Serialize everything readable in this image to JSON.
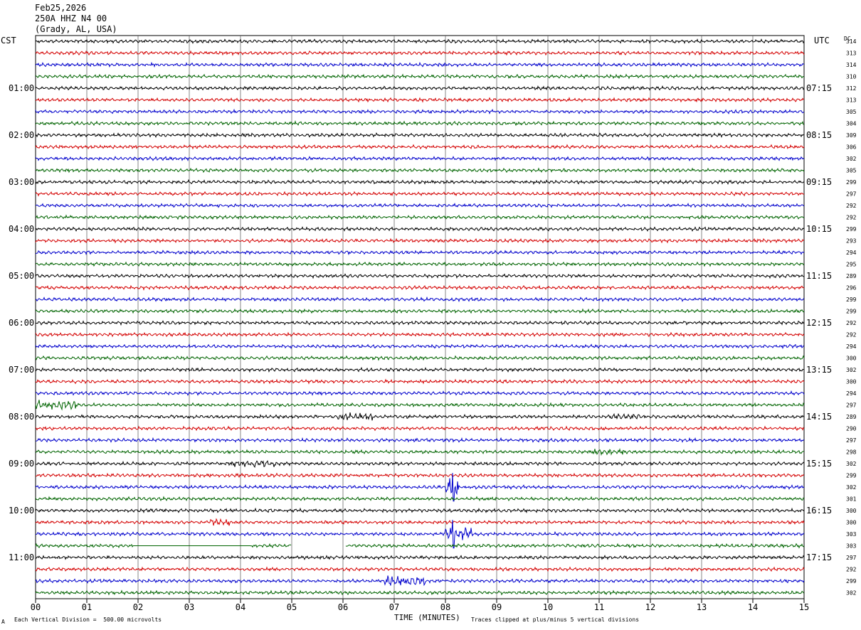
{
  "header": {
    "date": "Feb25,2026",
    "station": "250A HHZ N4 00",
    "location": "(Grady, AL, USA)"
  },
  "left_tz": "CST",
  "right_tz": "UTC",
  "dc_header": "DC",
  "footer": {
    "division": "Each Vertical Division =  500.00 microvolts",
    "xlabel": "TIME (MINUTES)",
    "clip_note": "Traces clipped at plus/minus 5 vertical divisions",
    "corner_mark": "A"
  },
  "colors": {
    "trace_cycle": [
      "#000000",
      "#d40000",
      "#0000cc",
      "#006400"
    ],
    "grid": "#000000"
  },
  "chart_data": {
    "type": "line",
    "title": "",
    "xlabel": "TIME (MINUTES)",
    "ylabel": "",
    "xlim": [
      0,
      15
    ],
    "x_ticks": [
      "00",
      "01",
      "02",
      "03",
      "04",
      "05",
      "06",
      "07",
      "08",
      "09",
      "10",
      "11",
      "12",
      "13",
      "14",
      "15"
    ],
    "grid": true,
    "left_time_labels": [
      {
        "row": 4,
        "label": "01:00"
      },
      {
        "row": 8,
        "label": "02:00"
      },
      {
        "row": 12,
        "label": "03:00"
      },
      {
        "row": 16,
        "label": "04:00"
      },
      {
        "row": 20,
        "label": "05:00"
      },
      {
        "row": 24,
        "label": "06:00"
      },
      {
        "row": 28,
        "label": "07:00"
      },
      {
        "row": 32,
        "label": "08:00"
      },
      {
        "row": 36,
        "label": "09:00"
      },
      {
        "row": 40,
        "label": "10:00"
      },
      {
        "row": 44,
        "label": "11:00"
      }
    ],
    "right_time_labels": [
      {
        "row": 4,
        "label": "07:15"
      },
      {
        "row": 8,
        "label": "08:15"
      },
      {
        "row": 12,
        "label": "09:15"
      },
      {
        "row": 16,
        "label": "10:15"
      },
      {
        "row": 20,
        "label": "11:15"
      },
      {
        "row": 24,
        "label": "12:15"
      },
      {
        "row": 28,
        "label": "13:15"
      },
      {
        "row": 32,
        "label": "14:15"
      },
      {
        "row": 36,
        "label": "15:15"
      },
      {
        "row": 40,
        "label": "16:15"
      },
      {
        "row": 44,
        "label": "17:15"
      }
    ],
    "dc_values": [
      314,
      313,
      314,
      310,
      312,
      313,
      305,
      304,
      309,
      306,
      302,
      305,
      299,
      297,
      292,
      292,
      299,
      293,
      294,
      295,
      289,
      296,
      299,
      299,
      292,
      292,
      294,
      300,
      302,
      300,
      294,
      297,
      289,
      290,
      297,
      298,
      302,
      299,
      302,
      301,
      300,
      300,
      303,
      303,
      297,
      292,
      299,
      302
    ],
    "trace_count": 48,
    "events": [
      {
        "row": 31,
        "start_min": 0.0,
        "end_min": 0.8,
        "amp": 2.6
      },
      {
        "row": 32,
        "start_min": 5.9,
        "end_min": 6.6,
        "amp": 2.2
      },
      {
        "row": 32,
        "start_min": 11.2,
        "end_min": 11.8,
        "amp": 1.6
      },
      {
        "row": 35,
        "start_min": 10.8,
        "end_min": 11.5,
        "amp": 1.8
      },
      {
        "row": 36,
        "start_min": 3.8,
        "end_min": 4.7,
        "amp": 1.8
      },
      {
        "row": 38,
        "start_min": 8.0,
        "end_min": 8.25,
        "amp": 5.0
      },
      {
        "row": 41,
        "start_min": 3.4,
        "end_min": 3.8,
        "amp": 1.8
      },
      {
        "row": 42,
        "start_min": 8.0,
        "end_min": 8.5,
        "amp": 4.0
      },
      {
        "row": 46,
        "start_min": 6.8,
        "end_min": 7.6,
        "amp": 2.6
      }
    ],
    "gaps": [
      {
        "row": 43,
        "start_min": 1.9,
        "end_min": 4.2
      },
      {
        "row": 43,
        "start_min": 5.0,
        "end_min": 6.05
      }
    ],
    "spikes": [
      {
        "row": 38,
        "min": 8.15,
        "amp": 9
      },
      {
        "row": 42,
        "min": 8.15,
        "amp": 9
      }
    ]
  }
}
